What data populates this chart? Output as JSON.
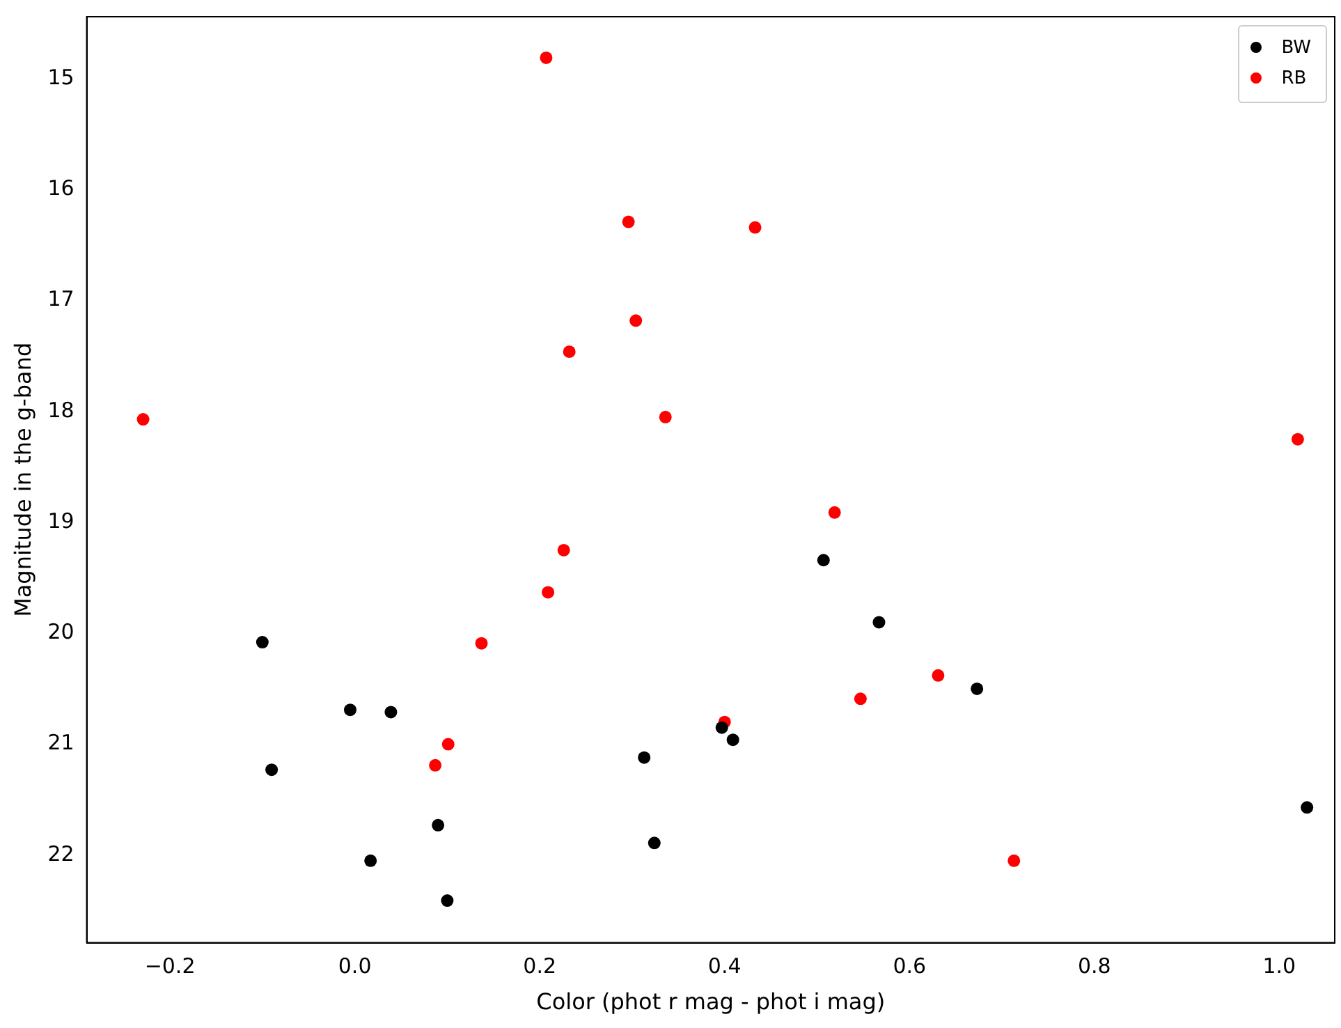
{
  "chart_data": {
    "type": "scatter",
    "xlabel": "Color (phot r mag - phot i mag)",
    "ylabel": "Magnitude in the g-band",
    "xlim": [
      -0.29,
      1.06
    ],
    "ylim": [
      22.79,
      14.44
    ],
    "xticks": [
      {
        "value": -0.2,
        "label": "−0.2"
      },
      {
        "value": 0,
        "label": "0.0"
      },
      {
        "value": 0.2,
        "label": "0.2"
      },
      {
        "value": 0.4,
        "label": "0.4"
      },
      {
        "value": 0.6,
        "label": "0.6"
      },
      {
        "value": 0.8,
        "label": "0.8"
      },
      {
        "value": 1,
        "label": "1.0"
      }
    ],
    "yticks": [
      15,
      16,
      17,
      18,
      19,
      20,
      21,
      22
    ],
    "grid": false,
    "legend": "top right",
    "marker": "circle",
    "series": [
      {
        "name": "BW",
        "color": "#000000",
        "x": [
          -0.1,
          -0.09,
          -0.005,
          0.039,
          0.017,
          0.09,
          0.1,
          0.313,
          0.324,
          0.397,
          0.409,
          0.507,
          0.567,
          0.673,
          1.03
        ],
        "values": [
          20.08,
          21.23,
          20.69,
          20.71,
          22.05,
          21.73,
          22.41,
          21.12,
          21.89,
          20.85,
          20.96,
          19.34,
          19.9,
          20.5,
          21.57
        ]
      },
      {
        "name": "RB",
        "color": "#ff0000",
        "x": [
          0.207,
          0.296,
          0.433,
          0.304,
          0.232,
          -0.229,
          0.336,
          1.02,
          0.519,
          0.226,
          0.209,
          0.137,
          0.631,
          0.547,
          0.4,
          0.101,
          0.087,
          0.713
        ],
        "values": [
          14.81,
          16.29,
          16.34,
          17.18,
          17.46,
          18.07,
          18.05,
          18.25,
          18.91,
          19.25,
          19.63,
          20.09,
          20.38,
          20.59,
          20.8,
          21.0,
          21.19,
          22.05
        ]
      }
    ]
  }
}
